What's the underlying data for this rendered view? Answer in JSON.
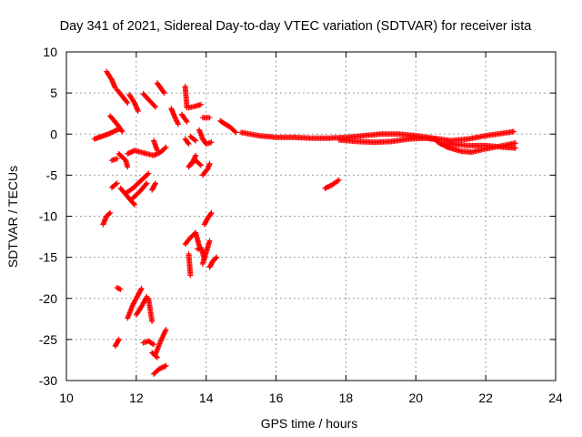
{
  "chart_data": {
    "type": "scatter",
    "title": "Day 341 of 2021, Sidereal Day-to-day VTEC variation (SDTVAR) for receiver ista",
    "xlabel": "GPS time / hours",
    "ylabel": "SDTVAR / TECUs",
    "xlim": [
      10,
      24
    ],
    "ylim": [
      -30,
      10
    ],
    "xticks": [
      10,
      12,
      14,
      16,
      18,
      20,
      22,
      24
    ],
    "yticks": [
      -30,
      -25,
      -20,
      -15,
      -10,
      -5,
      0,
      5,
      10
    ],
    "grid": true,
    "marker": "plus",
    "color": "#ff0000",
    "series": [
      {
        "name": "SDTVAR",
        "segments": [
          [
            [
              10.8,
              -0.6
            ],
            [
              11.0,
              -0.3
            ],
            [
              11.2,
              0.0
            ],
            [
              11.4,
              0.4
            ],
            [
              11.5,
              0.6
            ]
          ],
          [
            [
              11.15,
              7.6
            ],
            [
              11.3,
              6.6
            ],
            [
              11.4,
              5.6
            ]
          ],
          [
            [
              11.45,
              5.4
            ],
            [
              11.6,
              4.6
            ],
            [
              11.75,
              3.8
            ]
          ],
          [
            [
              11.8,
              4.8
            ],
            [
              11.95,
              3.8
            ],
            [
              12.05,
              2.8
            ]
          ],
          [
            [
              11.25,
              2.2
            ],
            [
              11.45,
              1.2
            ],
            [
              11.6,
              0.3
            ]
          ],
          [
            [
              11.5,
              -2.4
            ],
            [
              11.7,
              -3.2
            ],
            [
              11.75,
              -4.0
            ]
          ],
          [
            [
              11.75,
              -2.4
            ],
            [
              11.95,
              -2.0
            ],
            [
              12.3,
              -2.4
            ],
            [
              12.5,
              -2.6
            ],
            [
              12.7,
              -2.2
            ],
            [
              12.85,
              -1.6
            ]
          ],
          [
            [
              12.2,
              4.9
            ],
            [
              12.35,
              4.2
            ],
            [
              12.55,
              3.3
            ]
          ],
          [
            [
              12.6,
              6.2
            ],
            [
              12.7,
              5.6
            ],
            [
              12.8,
              5.0
            ]
          ],
          [
            [
              13.0,
              3.1
            ],
            [
              13.1,
              2.1
            ],
            [
              13.2,
              1.2
            ]
          ],
          [
            [
              12.5,
              -0.8
            ],
            [
              12.55,
              -1.4
            ],
            [
              12.6,
              -2.0
            ]
          ],
          [
            [
              11.3,
              -3.2
            ],
            [
              11.45,
              -3.0
            ]
          ],
          [
            [
              11.3,
              -6.5
            ],
            [
              11.45,
              -6.0
            ]
          ],
          [
            [
              11.55,
              -6.6
            ],
            [
              11.75,
              -7.6
            ],
            [
              11.95,
              -8.6
            ]
          ],
          [
            [
              11.7,
              -7.2
            ],
            [
              11.9,
              -6.6
            ],
            [
              12.1,
              -5.8
            ],
            [
              12.35,
              -4.8
            ]
          ],
          [
            [
              11.9,
              -7.8
            ],
            [
              12.1,
              -7.0
            ],
            [
              12.3,
              -6.0
            ]
          ],
          [
            [
              12.45,
              -6.8
            ],
            [
              12.55,
              -6.0
            ]
          ],
          [
            [
              11.05,
              -11.0
            ],
            [
              11.15,
              -10.0
            ],
            [
              11.25,
              -9.6
            ]
          ],
          [
            [
              11.45,
              -18.7
            ],
            [
              11.55,
              -18.9
            ]
          ],
          [
            [
              11.4,
              -25.8
            ],
            [
              11.5,
              -25.0
            ]
          ],
          [
            [
              11.75,
              -22.4
            ],
            [
              11.9,
              -20.8
            ],
            [
              12.05,
              -19.6
            ],
            [
              12.15,
              -18.8
            ]
          ],
          [
            [
              12.0,
              -22.0
            ],
            [
              12.15,
              -21.0
            ],
            [
              12.3,
              -19.8
            ]
          ],
          [
            [
              12.2,
              -25.4
            ],
            [
              12.35,
              -25.2
            ],
            [
              12.5,
              -25.6
            ]
          ],
          [
            [
              12.45,
              -26.6
            ],
            [
              12.6,
              -27.2
            ]
          ],
          [
            [
              12.5,
              -29.2
            ],
            [
              12.65,
              -28.6
            ],
            [
              12.85,
              -28.2
            ]
          ],
          [
            [
              12.55,
              -26.8
            ],
            [
              12.7,
              -25.2
            ],
            [
              12.85,
              -23.8
            ]
          ],
          [
            [
              12.35,
              -20.0
            ],
            [
              12.45,
              -22.8
            ]
          ],
          [
            [
              13.4,
              5.8
            ],
            [
              13.45,
              3.2
            ]
          ],
          [
            [
              13.3,
              2.4
            ],
            [
              13.45,
              1.5
            ]
          ],
          [
            [
              13.5,
              3.2
            ],
            [
              13.7,
              3.4
            ],
            [
              13.85,
              3.6
            ]
          ],
          [
            [
              13.4,
              -0.6
            ],
            [
              13.5,
              -1.2
            ]
          ],
          [
            [
              13.55,
              -0.3
            ],
            [
              13.7,
              -0.8
            ]
          ],
          [
            [
              13.5,
              -4.0
            ],
            [
              13.6,
              -3.4
            ],
            [
              13.7,
              -3.2
            ],
            [
              13.85,
              -3.8
            ]
          ],
          [
            [
              13.6,
              -3.6
            ],
            [
              13.7,
              -2.6
            ]
          ],
          [
            [
              13.8,
              0.5
            ],
            [
              13.9,
              -0.6
            ],
            [
              14.0,
              -1.2
            ],
            [
              14.15,
              -1.0
            ]
          ],
          [
            [
              13.9,
              2.0
            ],
            [
              14.1,
              2.0
            ]
          ],
          [
            [
              13.9,
              -5.0
            ],
            [
              14.05,
              -4.2
            ],
            [
              14.1,
              -3.6
            ]
          ],
          [
            [
              13.95,
              -11.0
            ],
            [
              14.05,
              -10.2
            ],
            [
              14.15,
              -9.6
            ]
          ],
          [
            [
              13.4,
              -13.4
            ],
            [
              13.55,
              -12.6
            ],
            [
              13.7,
              -12.0
            ],
            [
              13.8,
              -13.6
            ]
          ],
          [
            [
              13.5,
              -14.6
            ],
            [
              13.55,
              -17.2
            ]
          ],
          [
            [
              13.75,
              -14.0
            ],
            [
              13.85,
              -13.8
            ],
            [
              13.95,
              -15.2
            ]
          ],
          [
            [
              13.9,
              -15.8
            ],
            [
              14.0,
              -14.4
            ],
            [
              14.1,
              -13.0
            ]
          ],
          [
            [
              14.1,
              -16.2
            ],
            [
              14.2,
              -15.4
            ],
            [
              14.3,
              -15.0
            ]
          ],
          [
            [
              14.4,
              1.6
            ],
            [
              14.55,
              1.2
            ],
            [
              14.7,
              0.8
            ],
            [
              14.85,
              0.2
            ]
          ],
          [
            [
              15.0,
              0.2
            ],
            [
              15.5,
              -0.2
            ],
            [
              16.0,
              -0.4
            ],
            [
              16.5,
              -0.4
            ],
            [
              17.0,
              -0.5
            ],
            [
              17.5,
              -0.5
            ],
            [
              18.0,
              -0.4
            ],
            [
              18.5,
              -0.2
            ],
            [
              19.0,
              0.0
            ],
            [
              19.5,
              0.0
            ],
            [
              20.0,
              -0.2
            ],
            [
              20.5,
              -0.5
            ],
            [
              21.0,
              -0.8
            ],
            [
              21.5,
              -0.6
            ],
            [
              22.0,
              -0.2
            ],
            [
              22.5,
              0.1
            ],
            [
              22.8,
              0.3
            ]
          ],
          [
            [
              17.8,
              -0.7
            ],
            [
              18.3,
              -0.9
            ],
            [
              18.8,
              -1.0
            ],
            [
              19.3,
              -0.9
            ],
            [
              19.8,
              -0.6
            ],
            [
              20.3,
              -0.5
            ],
            [
              20.6,
              -0.7
            ]
          ],
          [
            [
              20.6,
              -0.9
            ],
            [
              20.9,
              -1.6
            ],
            [
              21.3,
              -2.1
            ],
            [
              21.6,
              -2.2
            ],
            [
              22.0,
              -1.8
            ],
            [
              22.5,
              -1.4
            ],
            [
              22.85,
              -1.1
            ]
          ],
          [
            [
              20.7,
              -1.2
            ],
            [
              21.0,
              -1.2
            ],
            [
              21.5,
              -1.4
            ],
            [
              22.0,
              -1.4
            ],
            [
              22.5,
              -1.6
            ],
            [
              22.85,
              -1.7
            ]
          ],
          [
            [
              17.4,
              -6.6
            ],
            [
              17.6,
              -6.2
            ],
            [
              17.8,
              -5.6
            ]
          ]
        ]
      }
    ]
  }
}
